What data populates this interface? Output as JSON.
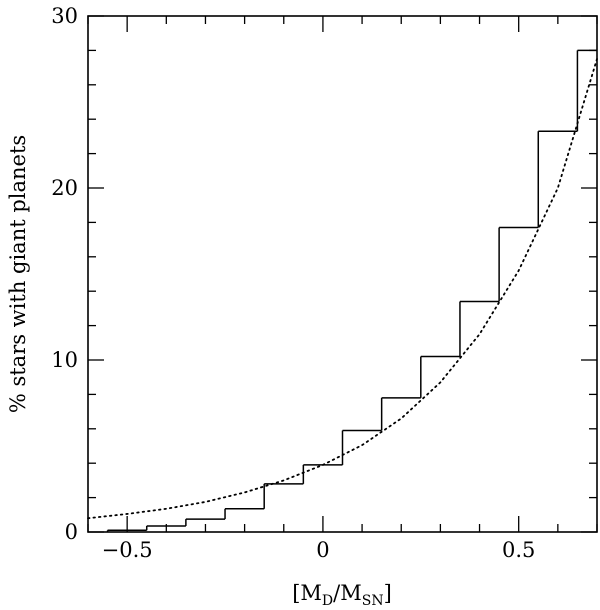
{
  "chart_data": {
    "type": "line",
    "title": "",
    "xlabel": {
      "pre": "[M",
      "sub1": "D",
      "mid": "/M",
      "sub2": "SN",
      "post": "]"
    },
    "ylabel": "% stars with giant planets",
    "xlim": [
      -0.6,
      0.7
    ],
    "ylim": [
      0,
      30
    ],
    "x_ticks": [
      -0.5,
      0,
      0.5
    ],
    "x_tick_labels": [
      "−0.5",
      "0",
      "0.5"
    ],
    "y_ticks": [
      0,
      10,
      20,
      30
    ],
    "y_tick_labels": [
      "0",
      "10",
      "20",
      "30"
    ],
    "x_minor_step": 0.1,
    "y_minor_step": 2,
    "grid": false,
    "series": [
      {
        "style": "histogram-step",
        "color": "#000000",
        "bins": [
          {
            "x0": -0.55,
            "x1": -0.45,
            "y": 0.1
          },
          {
            "x0": -0.45,
            "x1": -0.35,
            "y": 0.35
          },
          {
            "x0": -0.35,
            "x1": -0.25,
            "y": 0.75
          },
          {
            "x0": -0.25,
            "x1": -0.15,
            "y": 1.35
          },
          {
            "x0": -0.15,
            "x1": -0.05,
            "y": 2.8
          },
          {
            "x0": -0.05,
            "x1": 0.05,
            "y": 3.9
          },
          {
            "x0": 0.05,
            "x1": 0.15,
            "y": 5.9
          },
          {
            "x0": 0.15,
            "x1": 0.25,
            "y": 7.8
          },
          {
            "x0": 0.25,
            "x1": 0.35,
            "y": 10.2
          },
          {
            "x0": 0.35,
            "x1": 0.45,
            "y": 13.4
          },
          {
            "x0": 0.45,
            "x1": 0.55,
            "y": 17.7
          },
          {
            "x0": 0.55,
            "x1": 0.65,
            "y": 23.3
          },
          {
            "x0": 0.65,
            "x1": 0.7,
            "y": 28.0
          }
        ]
      },
      {
        "style": "dotted-curve",
        "color": "#000000",
        "x": [
          -0.6,
          -0.5,
          -0.4,
          -0.3,
          -0.2,
          -0.1,
          0.0,
          0.1,
          0.2,
          0.3,
          0.4,
          0.5,
          0.6,
          0.7
        ],
        "y": [
          0.8,
          1.05,
          1.35,
          1.75,
          2.3,
          3.0,
          3.9,
          5.05,
          6.6,
          8.7,
          11.5,
          15.2,
          20.0,
          27.5
        ]
      }
    ]
  }
}
